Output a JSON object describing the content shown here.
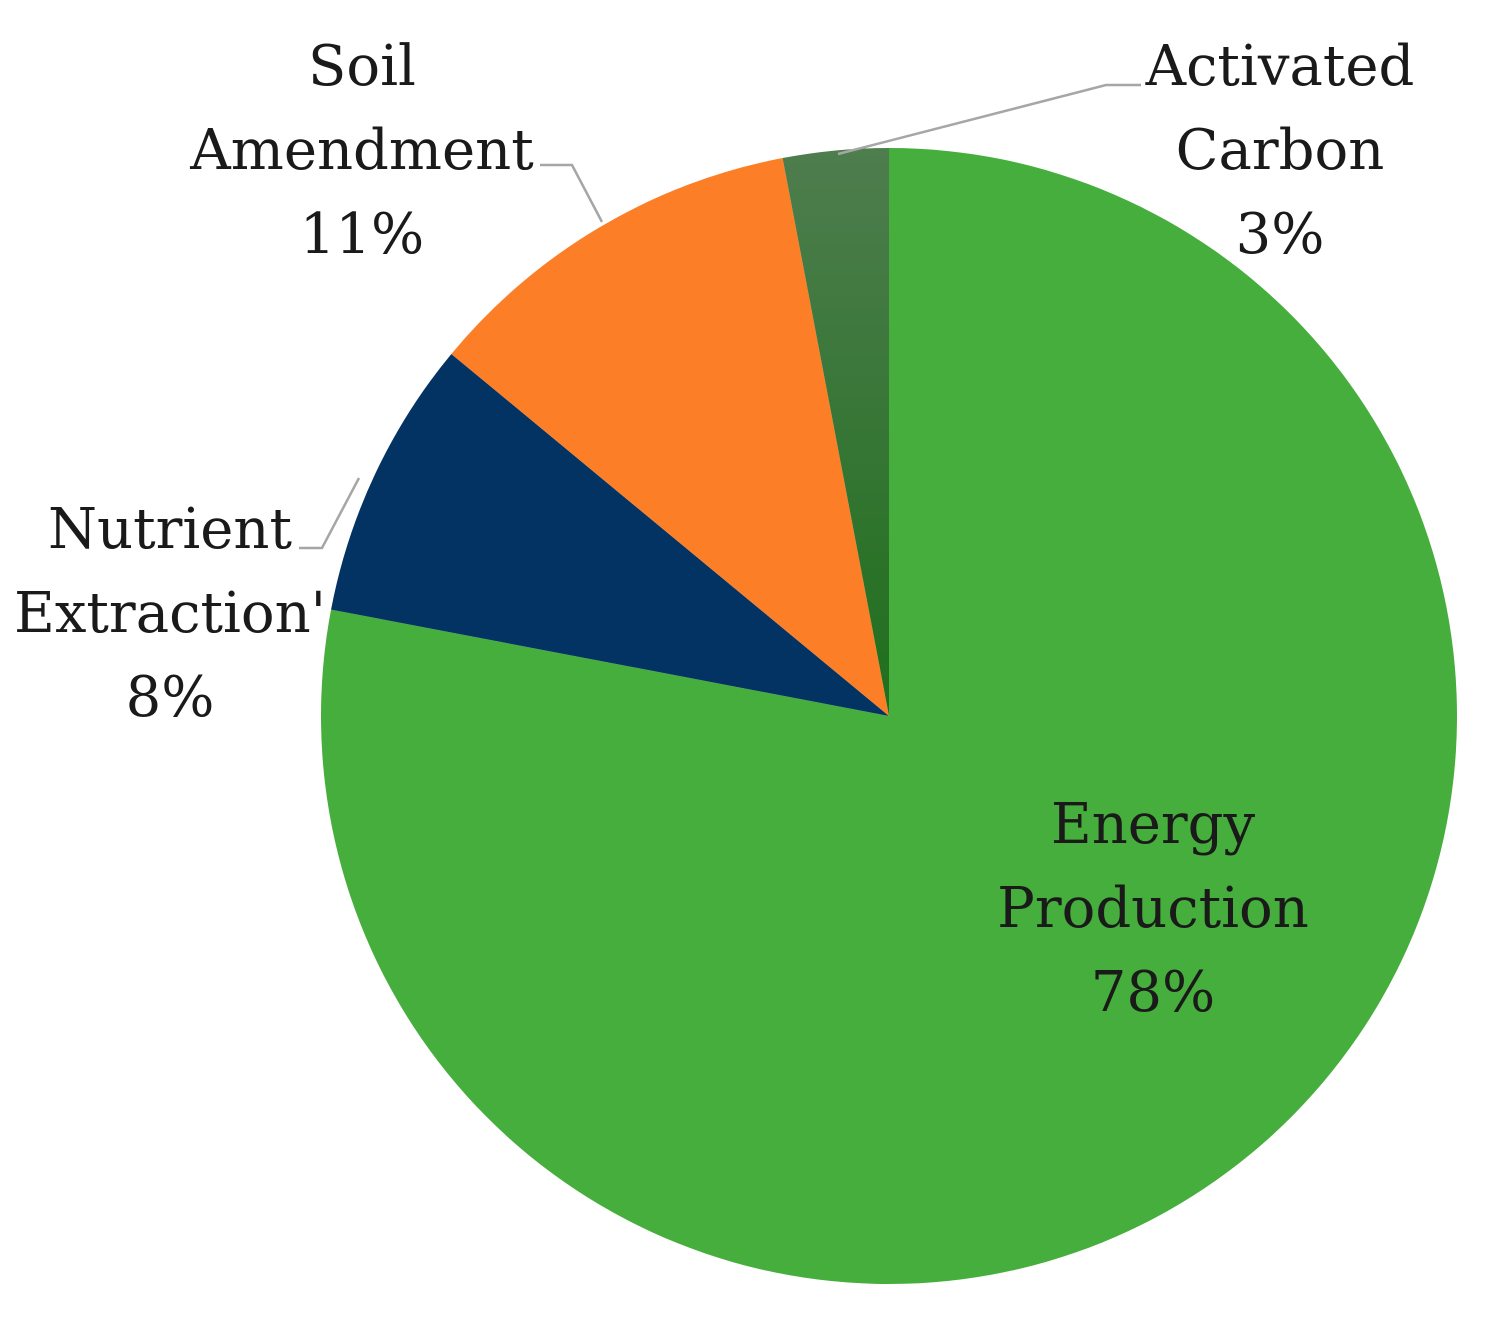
{
  "chart_data": {
    "type": "pie",
    "title": "",
    "start_angle_deg": 0,
    "direction": "clockwise",
    "slices": [
      {
        "label_lines": [
          "Energy",
          "Production",
          "78%"
        ],
        "value": 78,
        "color": "#46ae3c",
        "label_style": "inside"
      },
      {
        "label_lines": [
          "Nutrient",
          "Extraction'",
          "8%"
        ],
        "value": 8,
        "color": "#033362",
        "label_style": "callout"
      },
      {
        "label_lines": [
          "Soil",
          "Amendment",
          "11%"
        ],
        "value": 11,
        "color": "#fc7f28",
        "label_style": "callout"
      },
      {
        "label_lines": [
          "Activated",
          "Carbon",
          "3%"
        ],
        "value": 3,
        "color": "#1f6f1c",
        "color_shade": "#4e7d4e",
        "label_style": "callout"
      }
    ],
    "leader_line_color": "#a6a6a6",
    "grid": false,
    "legend": "none"
  }
}
